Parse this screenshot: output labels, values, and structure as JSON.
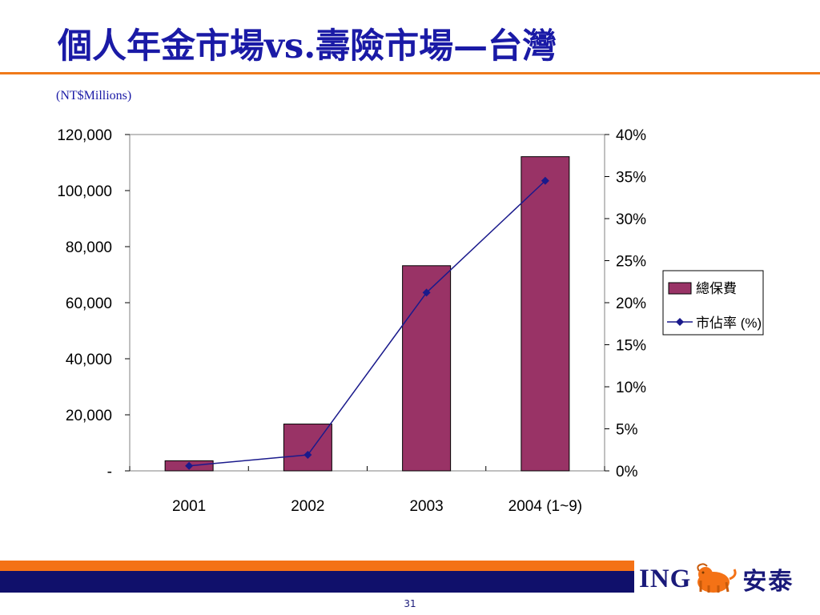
{
  "slide": {
    "title": "個人年金市場vs.壽險市場—台灣",
    "unit_note": "(NT$Millions)",
    "page_number": "31"
  },
  "brand": {
    "name_en": "ING",
    "name_cn": "安泰",
    "logo_icon": "lion-icon"
  },
  "colors": {
    "title": "#1a1aa6",
    "bar": "#993366",
    "line": "#1a1a8c",
    "accent_orange": "#f47216",
    "accent_navy": "#10106b"
  },
  "chart_data": {
    "type": "bar",
    "categories": [
      "2001",
      "2002",
      "2003",
      "2004 (1~9)"
    ],
    "series": [
      {
        "name": "總保費",
        "type": "bar",
        "axis": "left",
        "values": [
          3600,
          16700,
          73200,
          112100
        ]
      },
      {
        "name": "市佔率 (%)",
        "type": "line",
        "axis": "right",
        "marker": "diamond",
        "values": [
          0.006,
          0.019,
          0.212,
          0.345
        ]
      }
    ],
    "y_left": {
      "ylim": [
        0,
        120000
      ],
      "ticks": [
        0,
        20000,
        40000,
        60000,
        80000,
        100000,
        120000
      ],
      "tick_labels": [
        "-",
        "20,000",
        "40,000",
        "60,000",
        "80,000",
        "100,000",
        "120,000"
      ]
    },
    "y_right": {
      "ylim": [
        0,
        0.4
      ],
      "ticks": [
        0,
        0.05,
        0.1,
        0.15,
        0.2,
        0.25,
        0.3,
        0.35,
        0.4
      ],
      "tick_labels": [
        "0%",
        "5%",
        "10%",
        "15%",
        "20%",
        "25%",
        "30%",
        "35%",
        "40%"
      ]
    },
    "grid": false,
    "legend_position": "right"
  }
}
